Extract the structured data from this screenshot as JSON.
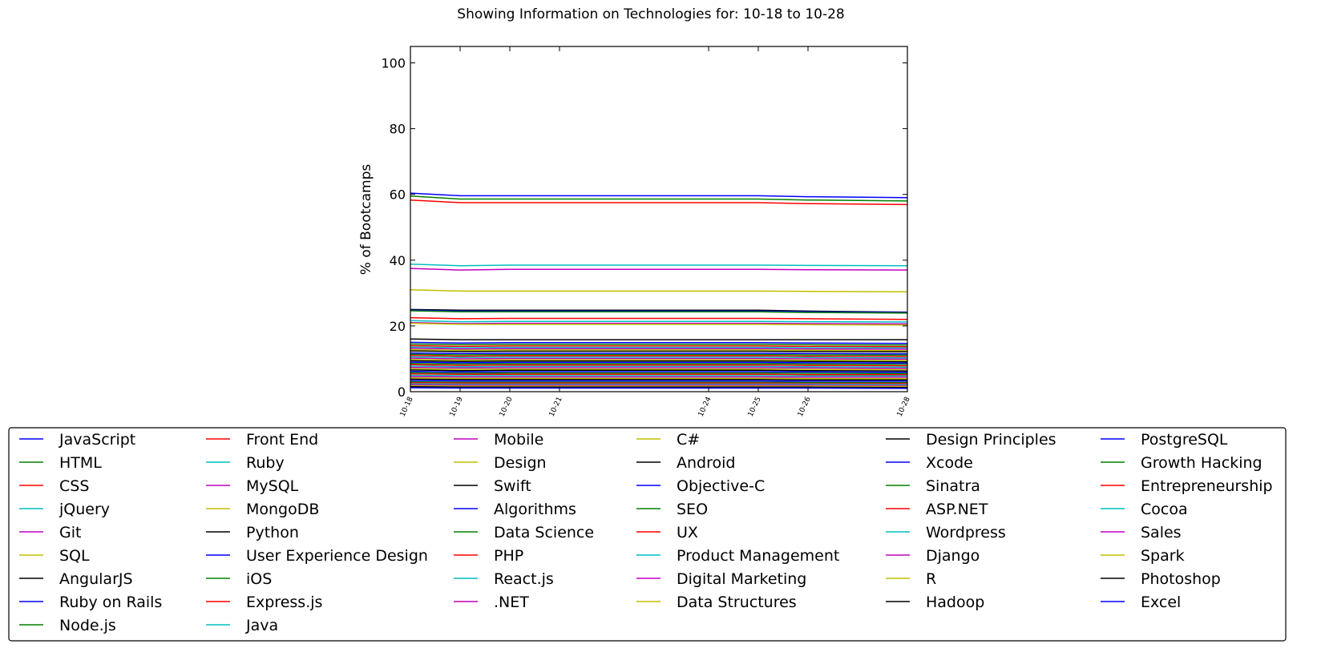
{
  "chart_data": {
    "type": "line",
    "title": "Showing Information on Technologies for: 10-18 to 10-28",
    "xlabel": "",
    "ylabel": "% of Bootcamps",
    "ylim": [
      0,
      105
    ],
    "yticks": [
      "0",
      "20",
      "40",
      "60",
      "80",
      "100"
    ],
    "x": [
      "10-18",
      "10-19",
      "10-20",
      "10-21",
      "10-24",
      "10-25",
      "10-26",
      "10-28"
    ],
    "x_positions": [
      18,
      19,
      20,
      21,
      24,
      25,
      26,
      28
    ],
    "grid": false,
    "legend_position": "bottom",
    "series": [
      {
        "name": "JavaScript",
        "color": "#0000ff",
        "values": [
          60.4,
          59.6,
          59.6,
          59.6,
          59.6,
          59.6,
          59.3,
          59.0
        ]
      },
      {
        "name": "HTML",
        "color": "#008000",
        "values": [
          59.5,
          58.6,
          58.6,
          58.6,
          58.6,
          58.6,
          58.3,
          58.0
        ]
      },
      {
        "name": "CSS",
        "color": "#ff0000",
        "values": [
          58.3,
          57.5,
          57.5,
          57.5,
          57.5,
          57.5,
          57.2,
          56.9
        ]
      },
      {
        "name": "jQuery",
        "color": "#00bfbf",
        "values": [
          38.8,
          38.3,
          38.5,
          38.5,
          38.5,
          38.5,
          38.4,
          38.3
        ]
      },
      {
        "name": "Git",
        "color": "#bf00bf",
        "values": [
          37.5,
          37.0,
          37.2,
          37.2,
          37.2,
          37.2,
          37.1,
          37.0
        ]
      },
      {
        "name": "SQL",
        "color": "#bfbf00",
        "values": [
          31.0,
          30.6,
          30.6,
          30.6,
          30.6,
          30.6,
          30.5,
          30.4
        ]
      },
      {
        "name": "AngularJS",
        "color": "#000000",
        "values": [
          25.0,
          24.8,
          24.8,
          24.8,
          24.8,
          24.8,
          24.5,
          24.2
        ]
      },
      {
        "name": "Ruby on Rails",
        "color": "#0000ff",
        "values": [
          24.8,
          24.5,
          24.5,
          24.5,
          24.5,
          24.5,
          24.3,
          24.1
        ]
      },
      {
        "name": "Node.js",
        "color": "#008000",
        "values": [
          24.6,
          24.3,
          24.3,
          24.3,
          24.3,
          24.3,
          24.1,
          23.9
        ]
      },
      {
        "name": "Front End",
        "color": "#ff0000",
        "values": [
          22.5,
          22.2,
          22.3,
          22.3,
          22.3,
          22.3,
          22.2,
          22.0
        ]
      },
      {
        "name": "Ruby",
        "color": "#00bfbf",
        "values": [
          21.6,
          21.3,
          21.4,
          21.4,
          21.4,
          21.4,
          21.3,
          21.2
        ]
      },
      {
        "name": "MySQL",
        "color": "#bf00bf",
        "values": [
          21.0,
          20.7,
          20.8,
          20.8,
          20.8,
          20.8,
          20.7,
          20.6
        ]
      },
      {
        "name": "MongoDB",
        "color": "#bfbf00",
        "values": [
          20.8,
          20.5,
          20.5,
          20.5,
          20.5,
          20.5,
          20.4,
          20.3
        ]
      },
      {
        "name": "Python",
        "color": "#000000",
        "values": [
          16.0,
          15.8,
          15.8,
          15.8,
          15.8,
          15.8,
          15.8,
          15.8
        ]
      },
      {
        "name": "User Experience Design",
        "color": "#0000ff",
        "values": [
          15.0,
          14.8,
          14.9,
          14.9,
          14.9,
          14.9,
          14.8,
          14.7
        ]
      },
      {
        "name": "iOS",
        "color": "#008000",
        "values": [
          14.5,
          14.3,
          14.4,
          14.4,
          14.4,
          14.4,
          14.3,
          14.2
        ]
      },
      {
        "name": "Express.js",
        "color": "#ff0000",
        "values": [
          14.0,
          13.8,
          13.9,
          13.9,
          13.9,
          13.9,
          13.8,
          13.7
        ]
      },
      {
        "name": "Java",
        "color": "#00bfbf",
        "values": [
          13.6,
          13.4,
          13.5,
          13.5,
          13.5,
          13.5,
          13.4,
          13.3
        ]
      },
      {
        "name": "Mobile",
        "color": "#bf00bf",
        "values": [
          13.2,
          13.0,
          13.1,
          13.1,
          13.1,
          13.1,
          13.0,
          12.9
        ]
      },
      {
        "name": "Design",
        "color": "#bfbf00",
        "values": [
          12.8,
          12.6,
          12.7,
          12.7,
          12.7,
          12.7,
          12.6,
          12.5
        ]
      },
      {
        "name": "Swift",
        "color": "#000000",
        "values": [
          12.4,
          12.2,
          12.3,
          12.3,
          12.3,
          12.3,
          12.2,
          12.1
        ]
      },
      {
        "name": "Algorithms",
        "color": "#0000ff",
        "values": [
          11.8,
          11.6,
          11.7,
          11.7,
          11.7,
          11.7,
          11.6,
          11.5
        ]
      },
      {
        "name": "Data Science",
        "color": "#008000",
        "values": [
          11.4,
          11.2,
          11.3,
          11.3,
          11.3,
          11.3,
          11.2,
          11.1
        ]
      },
      {
        "name": "PHP",
        "color": "#ff0000",
        "values": [
          11.0,
          10.8,
          10.9,
          10.9,
          10.9,
          10.9,
          10.8,
          10.7
        ]
      },
      {
        "name": "React.js",
        "color": "#00bfbf",
        "values": [
          10.6,
          10.4,
          10.5,
          10.5,
          10.5,
          10.5,
          10.4,
          10.3
        ]
      },
      {
        "name": ".NET",
        "color": "#bf00bf",
        "values": [
          10.2,
          10.0,
          10.1,
          10.1,
          10.1,
          10.1,
          10.0,
          9.9
        ]
      },
      {
        "name": "C#",
        "color": "#bfbf00",
        "values": [
          9.8,
          9.6,
          9.7,
          9.7,
          9.7,
          9.7,
          9.6,
          9.5
        ]
      },
      {
        "name": "Android",
        "color": "#000000",
        "values": [
          9.4,
          9.2,
          9.3,
          9.3,
          9.3,
          9.3,
          9.2,
          9.1
        ]
      },
      {
        "name": "Objective-C",
        "color": "#0000ff",
        "values": [
          9.0,
          8.8,
          8.9,
          8.9,
          8.9,
          8.9,
          8.8,
          8.7
        ]
      },
      {
        "name": "SEO",
        "color": "#008000",
        "values": [
          8.6,
          8.4,
          8.5,
          8.5,
          8.5,
          8.5,
          8.4,
          8.3
        ]
      },
      {
        "name": "UX",
        "color": "#ff0000",
        "values": [
          8.2,
          8.0,
          8.1,
          8.1,
          8.1,
          8.1,
          8.0,
          7.9
        ]
      },
      {
        "name": "Product Management",
        "color": "#00bfbf",
        "values": [
          7.8,
          7.6,
          7.7,
          7.7,
          7.7,
          7.7,
          7.6,
          7.5
        ]
      },
      {
        "name": "Digital Marketing",
        "color": "#bf00bf",
        "values": [
          7.4,
          7.2,
          7.3,
          7.3,
          7.3,
          7.3,
          7.2,
          7.1
        ]
      },
      {
        "name": "Data Structures",
        "color": "#bfbf00",
        "values": [
          7.0,
          6.8,
          6.9,
          6.9,
          6.9,
          6.9,
          6.8,
          6.7
        ]
      },
      {
        "name": "Design Principles",
        "color": "#000000",
        "values": [
          6.6,
          6.4,
          6.5,
          6.5,
          6.5,
          6.5,
          6.4,
          6.3
        ]
      },
      {
        "name": "Xcode",
        "color": "#0000ff",
        "values": [
          6.2,
          6.0,
          6.1,
          6.1,
          6.1,
          6.1,
          6.0,
          5.9
        ]
      },
      {
        "name": "Sinatra",
        "color": "#008000",
        "values": [
          5.8,
          5.6,
          5.7,
          5.7,
          5.7,
          5.7,
          5.6,
          5.5
        ]
      },
      {
        "name": "ASP.NET",
        "color": "#ff0000",
        "values": [
          5.4,
          5.3,
          5.3,
          5.3,
          5.3,
          5.3,
          5.2,
          5.2
        ]
      },
      {
        "name": "Wordpress",
        "color": "#00bfbf",
        "values": [
          5.0,
          4.9,
          4.9,
          4.9,
          4.9,
          4.9,
          4.8,
          4.8
        ]
      },
      {
        "name": "Django",
        "color": "#bf00bf",
        "values": [
          4.6,
          4.5,
          4.5,
          4.5,
          4.5,
          4.5,
          4.4,
          4.4
        ]
      },
      {
        "name": "R",
        "color": "#bfbf00",
        "values": [
          4.2,
          4.1,
          4.1,
          4.1,
          4.1,
          4.1,
          4.0,
          4.0
        ]
      },
      {
        "name": "Hadoop",
        "color": "#000000",
        "values": [
          3.8,
          3.7,
          3.7,
          3.7,
          3.7,
          3.7,
          3.6,
          3.6
        ]
      },
      {
        "name": "PostgreSQL",
        "color": "#0000ff",
        "values": [
          3.4,
          3.3,
          3.3,
          3.3,
          3.3,
          3.3,
          3.2,
          3.2
        ]
      },
      {
        "name": "Growth Hacking",
        "color": "#008000",
        "values": [
          3.0,
          2.9,
          2.9,
          2.9,
          2.9,
          2.9,
          2.8,
          2.8
        ]
      },
      {
        "name": "Entrepreneurship",
        "color": "#ff0000",
        "values": [
          2.7,
          2.6,
          2.6,
          2.6,
          2.6,
          2.6,
          2.5,
          2.5
        ]
      },
      {
        "name": "Cocoa",
        "color": "#00bfbf",
        "values": [
          2.4,
          2.3,
          2.3,
          2.3,
          2.3,
          2.3,
          2.3,
          2.2
        ]
      },
      {
        "name": "Sales",
        "color": "#bf00bf",
        "values": [
          2.1,
          2.0,
          2.0,
          2.0,
          2.0,
          2.0,
          2.0,
          1.9
        ]
      },
      {
        "name": "Spark",
        "color": "#bfbf00",
        "values": [
          1.8,
          1.7,
          1.7,
          1.7,
          1.7,
          1.7,
          1.7,
          1.6
        ]
      },
      {
        "name": "Photoshop",
        "color": "#000000",
        "values": [
          1.5,
          1.4,
          1.4,
          1.4,
          1.4,
          1.4,
          1.4,
          1.3
        ]
      },
      {
        "name": "Excel",
        "color": "#0000ff",
        "values": [
          1.2,
          1.1,
          1.1,
          1.1,
          1.1,
          1.1,
          1.1,
          1.0
        ]
      }
    ]
  }
}
